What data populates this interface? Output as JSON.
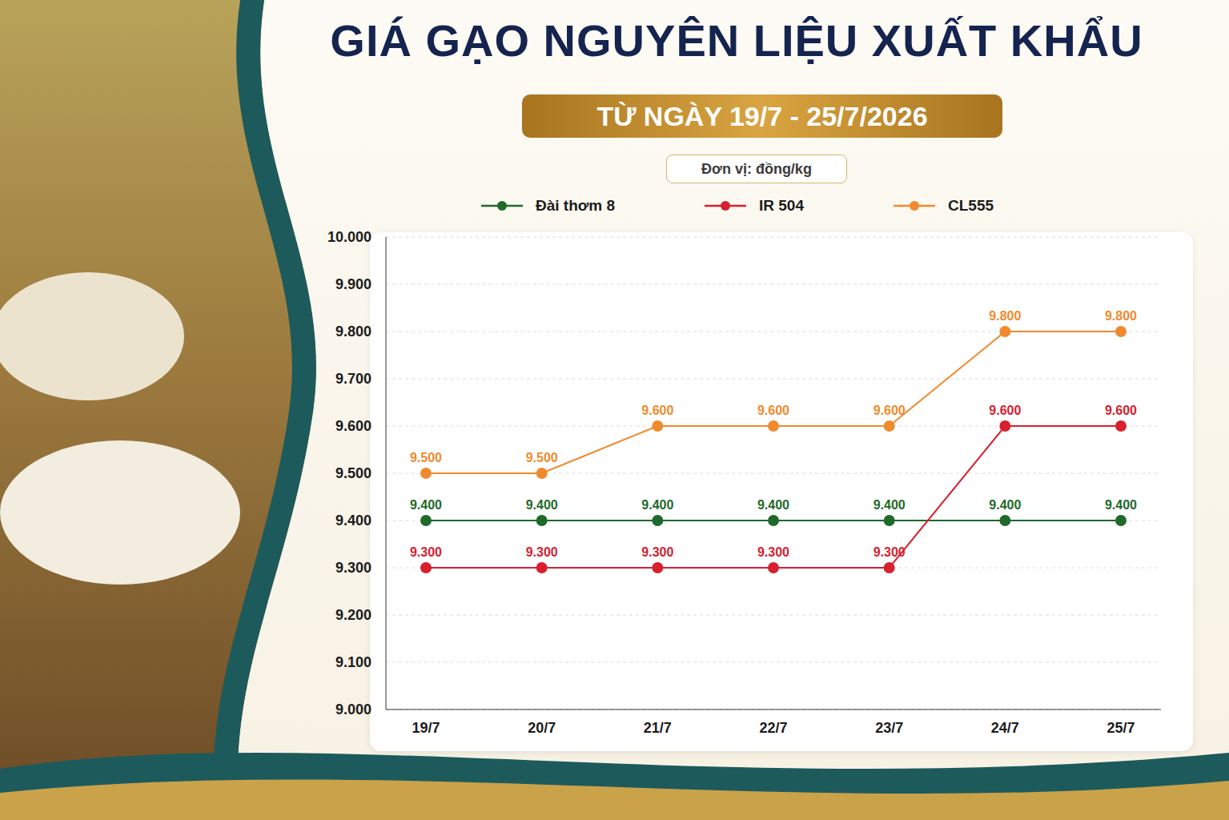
{
  "chart_data": {
    "type": "line",
    "title": "GIÁ GẠO NGUYÊN LIỆU XUẤT KHẨU",
    "subtitle": "TỪ NGÀY 19/7 - 25/7/2026",
    "annotation": "Đơn vị: đồng/kg",
    "categories": [
      "19/7",
      "20/7",
      "21/7",
      "22/7",
      "23/7",
      "24/7",
      "25/7"
    ],
    "series": [
      {
        "name": "Đài thơm 8",
        "color": "#1f6a2b",
        "marker": "circle",
        "values": [
          9400,
          9400,
          9400,
          9400,
          9400,
          9400,
          9400
        ],
        "value_labels": [
          "9.400",
          "9.400",
          "9.400",
          "9.400",
          "9.400",
          "9.400",
          "9.400"
        ]
      },
      {
        "name": "IR 504",
        "color": "#d7212f",
        "marker": "circle",
        "values": [
          9300,
          9300,
          9300,
          9300,
          9300,
          9600,
          9600
        ],
        "value_labels": [
          "9.300",
          "9.300",
          "9.300",
          "9.300",
          "9.300",
          "9.600",
          "9.600"
        ]
      },
      {
        "name": "CL555",
        "color": "#f08a2e",
        "marker": "circle",
        "values": [
          9500,
          9500,
          9600,
          9600,
          9600,
          9800,
          9800
        ],
        "value_labels": [
          "9.500",
          "9.500",
          "9.600",
          "9.600",
          "9.600",
          "9.800",
          "9.800"
        ]
      }
    ],
    "ylim": [
      9000,
      10000
    ],
    "yticks": [
      {
        "value": 9000,
        "label": "9.000"
      },
      {
        "value": 9100,
        "label": "9.100"
      },
      {
        "value": 9200,
        "label": "9.200"
      },
      {
        "value": 9300,
        "label": "9.300"
      },
      {
        "value": 9400,
        "label": "9.400"
      },
      {
        "value": 9500,
        "label": "9.500"
      },
      {
        "value": 9600,
        "label": "9.600"
      },
      {
        "value": 9700,
        "label": "9.700"
      },
      {
        "value": 9800,
        "label": "9.800"
      },
      {
        "value": 9900,
        "label": "9.900"
      },
      {
        "value": 10000,
        "label": "10.000"
      }
    ],
    "grid": true,
    "legend": "top",
    "data_labels": true
  }
}
